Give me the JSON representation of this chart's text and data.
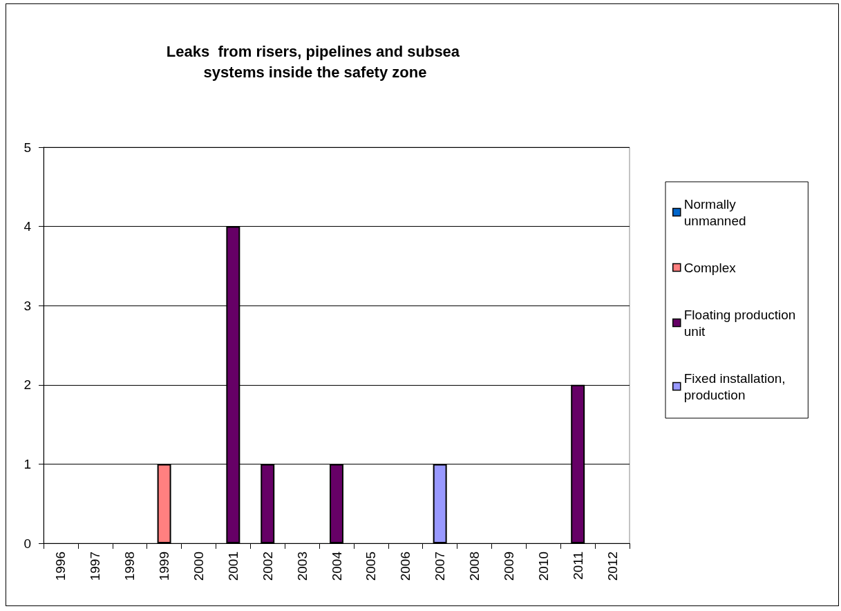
{
  "chart_data": {
    "type": "bar",
    "title": "Leaks  from risers, pipelines and subsea systems inside the safety zone",
    "categories": [
      "1996",
      "1997",
      "1998",
      "1999",
      "2000",
      "2001",
      "2002",
      "2003",
      "2004",
      "2005",
      "2006",
      "2007",
      "2008",
      "2009",
      "2010",
      "2011",
      "2012"
    ],
    "series": [
      {
        "name": "Normally unmanned",
        "color": "#0066cc",
        "values": [
          null,
          null,
          null,
          null,
          null,
          null,
          null,
          null,
          null,
          null,
          null,
          null,
          null,
          null,
          null,
          null,
          null
        ]
      },
      {
        "name": "Complex",
        "color": "#ff8080",
        "values": [
          null,
          null,
          null,
          1,
          null,
          null,
          null,
          null,
          null,
          null,
          null,
          null,
          null,
          null,
          null,
          null,
          null
        ]
      },
      {
        "name": "Floating production unit",
        "color": "#660066",
        "values": [
          null,
          null,
          null,
          null,
          null,
          4,
          1,
          null,
          1,
          null,
          null,
          null,
          null,
          null,
          null,
          2,
          null
        ]
      },
      {
        "name": "Fixed installation, production",
        "color": "#9999ff",
        "values": [
          null,
          null,
          null,
          null,
          null,
          null,
          null,
          null,
          null,
          null,
          null,
          1,
          null,
          null,
          null,
          null,
          null
        ]
      }
    ],
    "stacked": true,
    "ylim": [
      0,
      5
    ],
    "yticks": [
      0,
      1,
      2,
      3,
      4,
      5
    ],
    "grid": "y",
    "legend": "right"
  }
}
